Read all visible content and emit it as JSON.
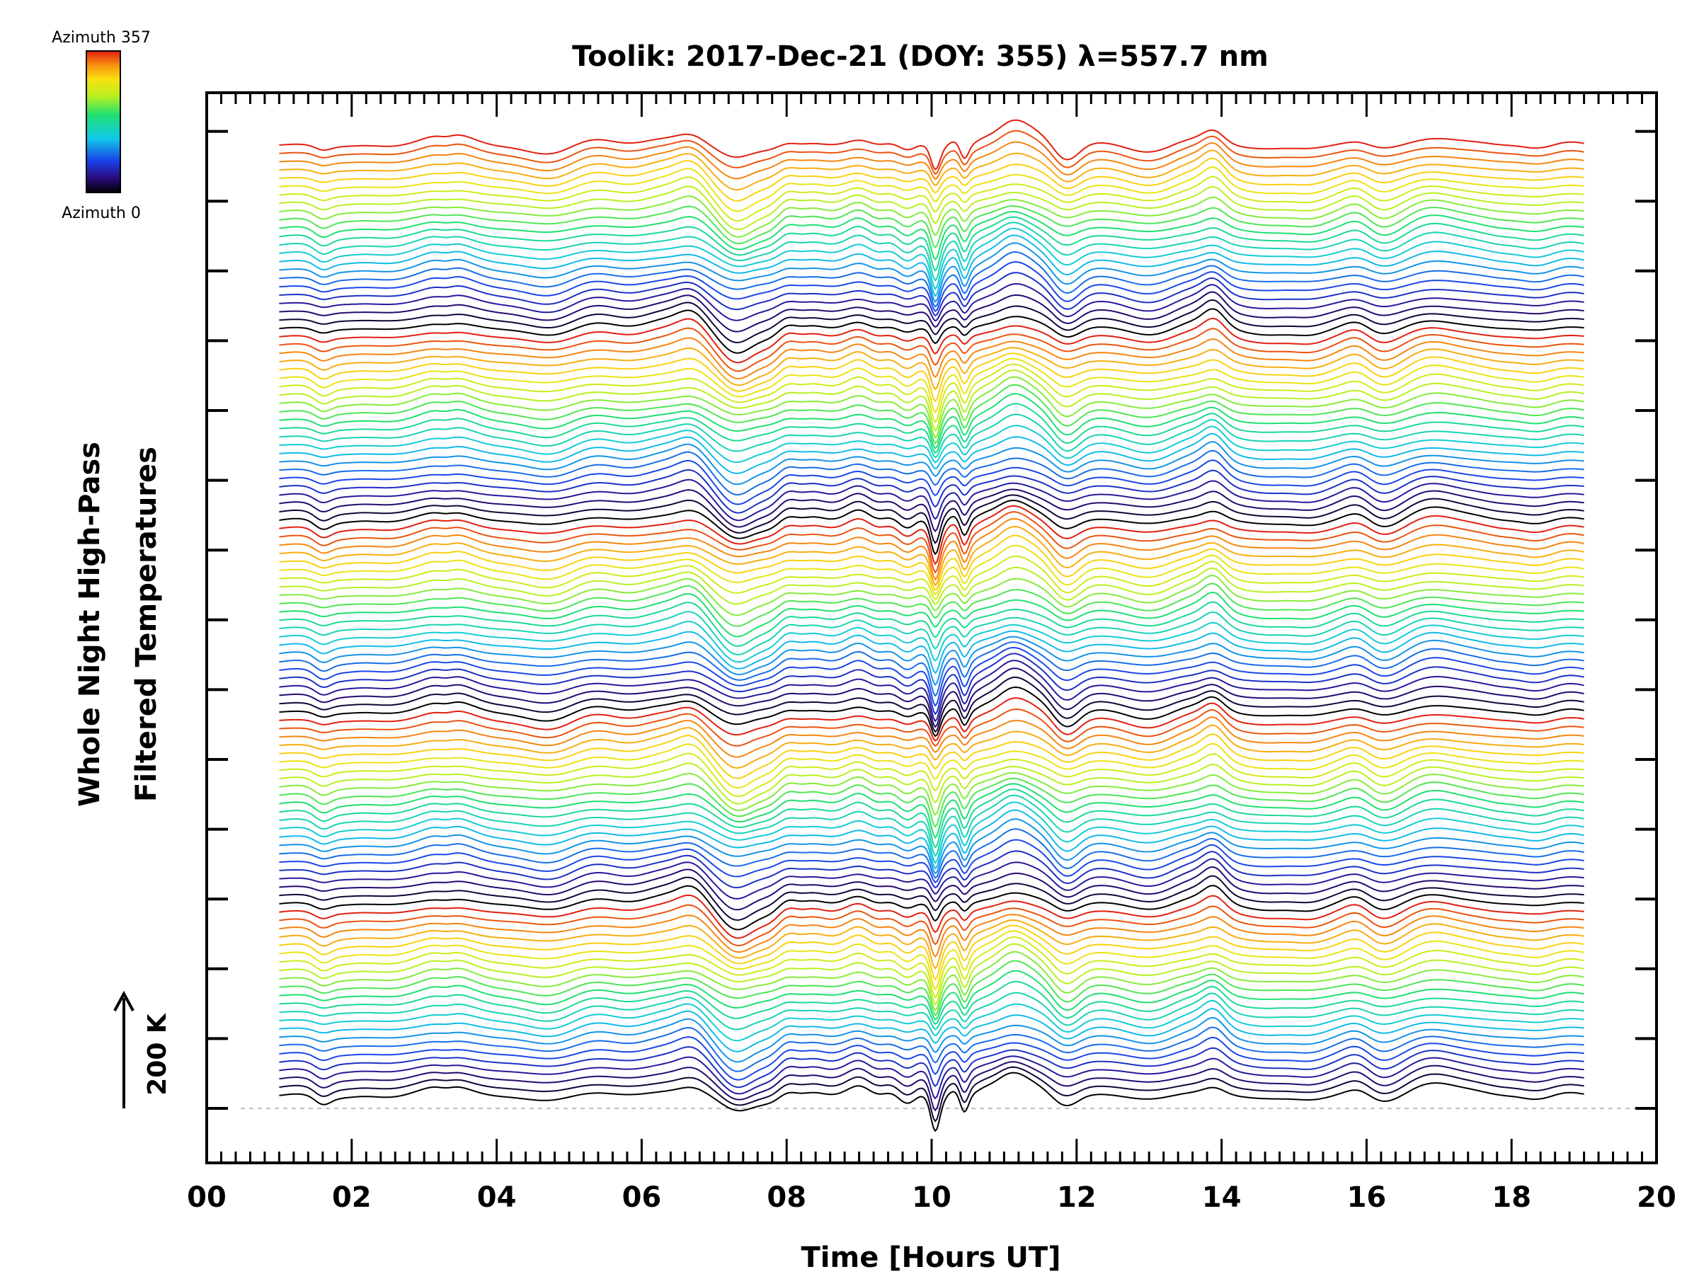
{
  "chart_data": {
    "type": "line",
    "title": "Toolik: 2017-Dec-21 (DOY: 355) λ=557.7 nm",
    "xlabel": "Time [Hours UT]",
    "ylabel_line1": "Whole Night High-Pass",
    "ylabel_line2": "Filtered Temperatures",
    "xlim": [
      0,
      20
    ],
    "x_tick_labels": [
      "00",
      "02",
      "04",
      "06",
      "08",
      "10",
      "12",
      "14",
      "16",
      "18",
      "20"
    ],
    "data_time_range": [
      1.0,
      19.0
    ],
    "scale_bar": {
      "label": "200 K",
      "value_K": 200
    },
    "colorbar": {
      "top_label": "Azimuth 357",
      "bottom_label": "Azimuth 0",
      "colormap": "rainbow",
      "azimuth_range": [
        0,
        357
      ]
    },
    "series_count": 115,
    "series_azimuth_period": 23,
    "baseline_style": "dashed grey",
    "features": [
      {
        "time": 6.7,
        "note": "warm ridge before sharp drop"
      },
      {
        "time": 7.3,
        "note": "cold dip"
      },
      {
        "time": 9.6,
        "note": "oscillations start"
      },
      {
        "time": 10.0,
        "note": "deep minimum"
      },
      {
        "time": 11.1,
        "note": "broad warm peak"
      },
      {
        "time": 11.7,
        "note": "sharp drop"
      },
      {
        "time": 13.9,
        "note": "warm peak"
      }
    ]
  },
  "colors": {
    "axis": "#000000",
    "background": "#ffffff",
    "baseline": "#aaaaaa"
  }
}
